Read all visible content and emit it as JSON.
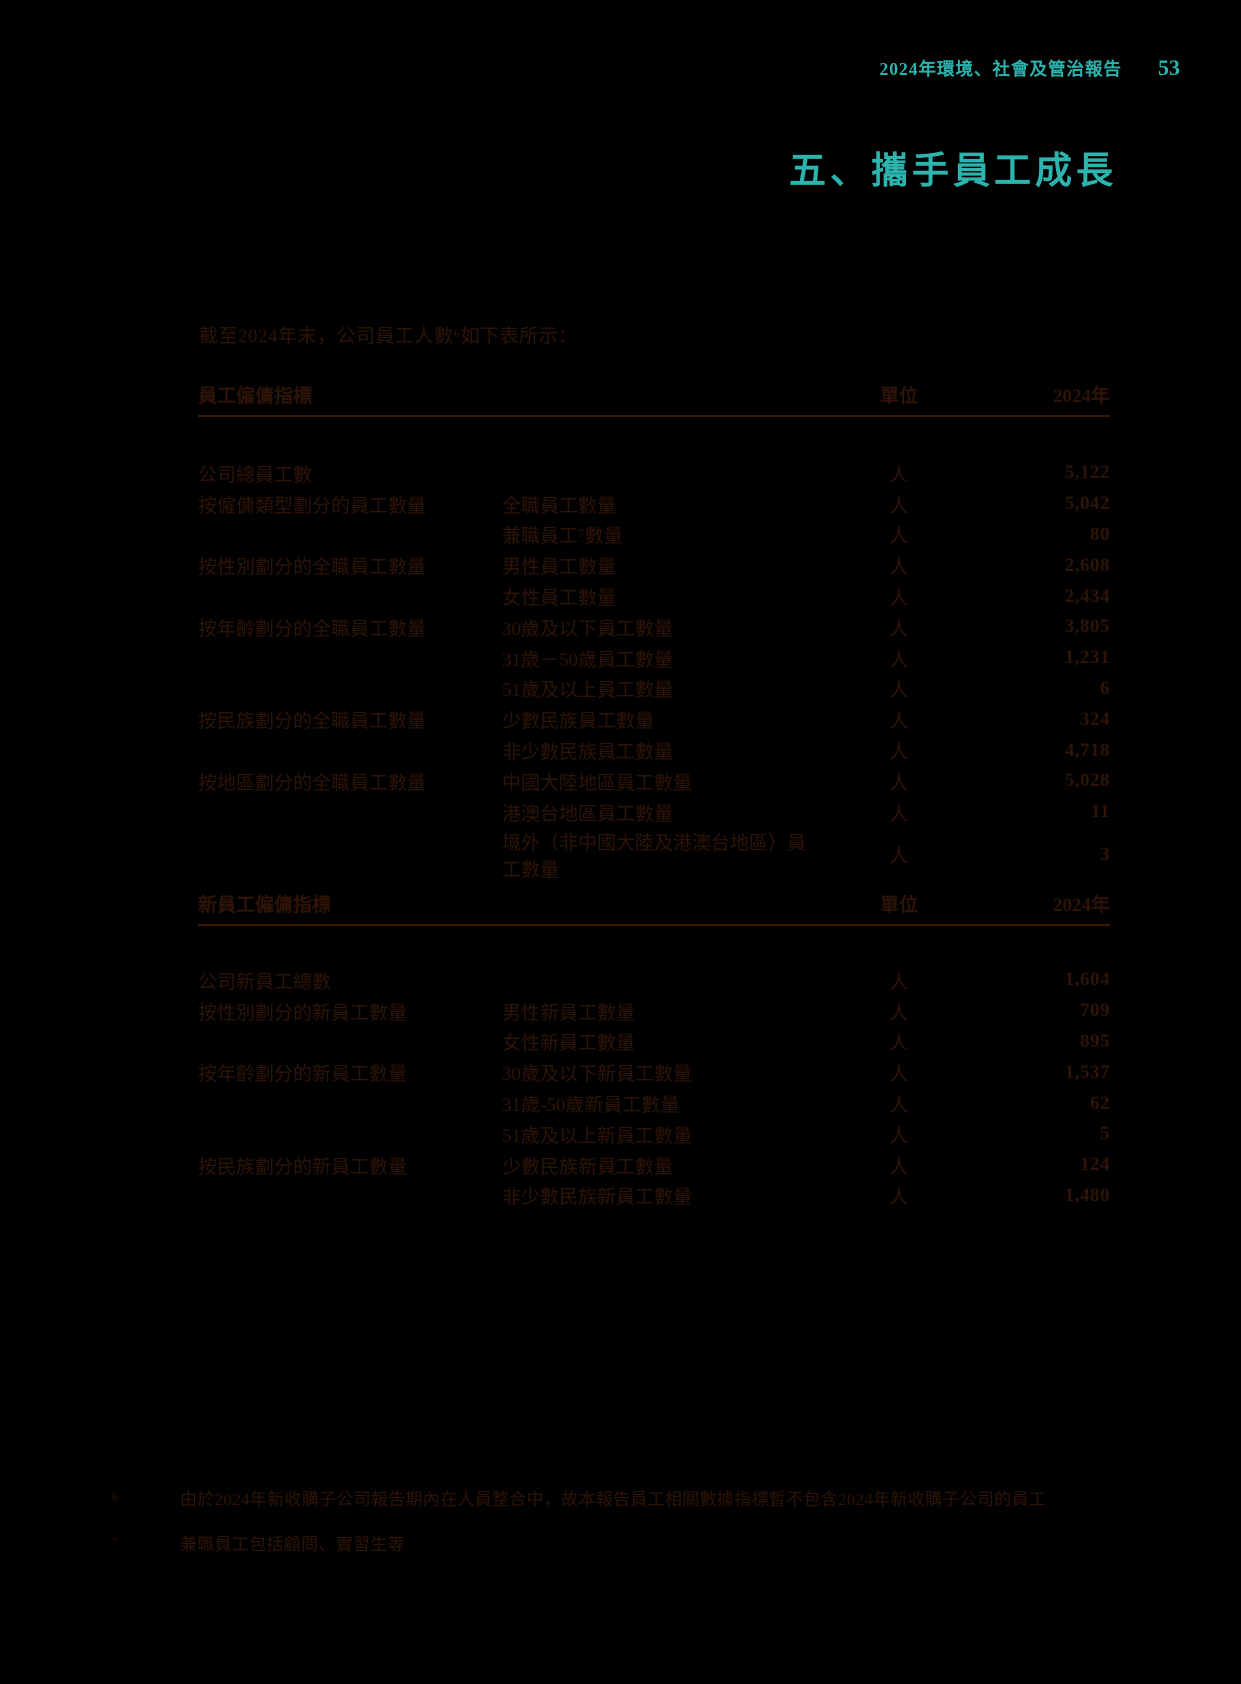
{
  "colors": {
    "accent": "#2bb5ae",
    "ink": "#2e1407",
    "rule": "#3b1905",
    "page_bg": "#000000"
  },
  "header": {
    "report_title": "2024年環境、社會及管治報告",
    "page_number": "53"
  },
  "section_title": "五、攜手員工成長",
  "intro": "截至2024年末，公司員工人數⁶如下表所示：",
  "employee_table": {
    "title": "員工僱傭指標",
    "unit_header": "單位",
    "year_header": "2024年",
    "rows": [
      {
        "category": "公司總員工數",
        "item": "",
        "unit": "人",
        "value": "5,122"
      },
      {
        "category": "按僱傭類型劃分的員工數量",
        "item": "全職員工數量",
        "unit": "人",
        "value": "5,042"
      },
      {
        "category": "",
        "item": "兼職員工⁷數量",
        "unit": "人",
        "value": "80"
      },
      {
        "category": "按性別劃分的全職員工數量",
        "item": "男性員工數量",
        "unit": "人",
        "value": "2,608"
      },
      {
        "category": "",
        "item": "女性員工數量",
        "unit": "人",
        "value": "2,434"
      },
      {
        "category": "按年齡劃分的全職員工數量",
        "item": "30歲及以下員工數量",
        "unit": "人",
        "value": "3,805"
      },
      {
        "category": "",
        "item": "31歲－50歲員工數量",
        "unit": "人",
        "value": "1,231"
      },
      {
        "category": "",
        "item": "51歲及以上員工數量",
        "unit": "人",
        "value": "6"
      },
      {
        "category": "按民族劃分的全職員工數量",
        "item": "少數民族員工數量",
        "unit": "人",
        "value": "324"
      },
      {
        "category": "",
        "item": "非少數民族員工數量",
        "unit": "人",
        "value": "4,718"
      },
      {
        "category": "按地區劃分的全職員工數量",
        "item": "中國大陸地區員工數量",
        "unit": "人",
        "value": "5,028"
      },
      {
        "category": "",
        "item": "港澳台地區員工數量",
        "unit": "人",
        "value": "11"
      },
      {
        "category": "",
        "item": "境外（非中國大陸及港澳台地區）員工數量",
        "unit": "人",
        "value": "3"
      }
    ]
  },
  "new_employee_table": {
    "title": "新員工僱傭指標",
    "unit_header": "單位",
    "year_header": "2024年",
    "rows": [
      {
        "category": "公司新員工總數",
        "item": "",
        "unit": "人",
        "value": "1,604"
      },
      {
        "category": "按性別劃分的新員工數量",
        "item": "男性新員工數量",
        "unit": "人",
        "value": "709"
      },
      {
        "category": "",
        "item": "女性新員工數量",
        "unit": "人",
        "value": "895"
      },
      {
        "category": "按年齡劃分的新員工數量",
        "item": "30歲及以下新員工數量",
        "unit": "人",
        "value": "1,537"
      },
      {
        "category": "",
        "item": "31歲-50歲新員工數量",
        "unit": "人",
        "value": "62"
      },
      {
        "category": "",
        "item": "51歲及以上新員工數量",
        "unit": "人",
        "value": "5"
      },
      {
        "category": "按民族劃分的新員工數量",
        "item": "少數民族新員工數量",
        "unit": "人",
        "value": "124"
      },
      {
        "category": "",
        "item": "非少數民族新員工數量",
        "unit": "人",
        "value": "1,480"
      }
    ]
  },
  "footnotes": [
    {
      "marker": "6",
      "text": "由於2024年新收購子公司報告期內在人員整合中，故本報告員工相關數據指標暫不包含2024年新收購子公司的員工"
    },
    {
      "marker": "7",
      "text": "兼職員工包括顧問、實習生等"
    }
  ]
}
